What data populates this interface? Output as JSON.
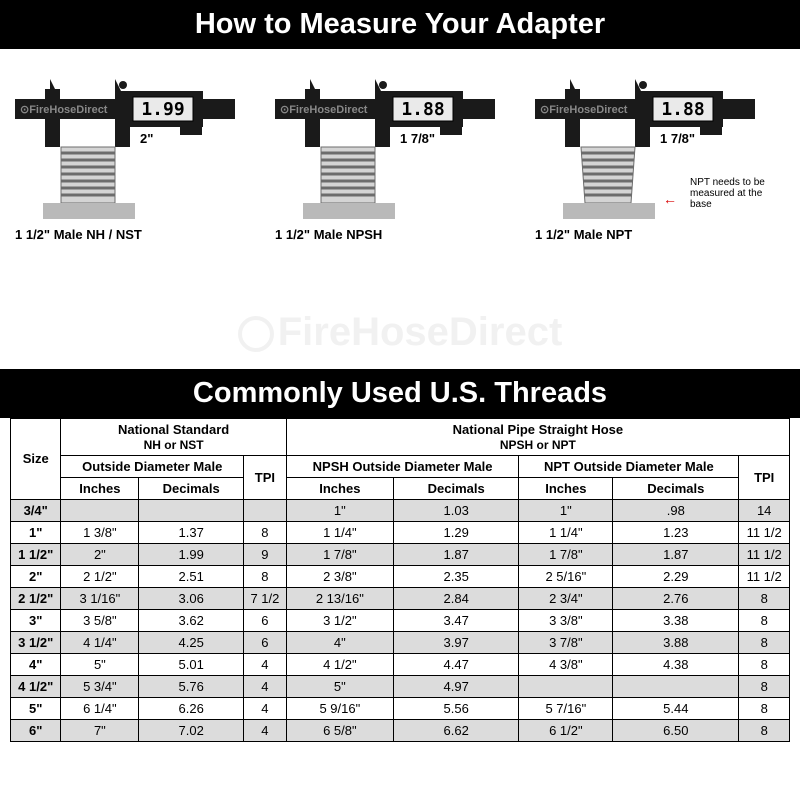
{
  "title1": "How to Measure Your Adapter",
  "title2": "Commonly Used U.S. Threads",
  "watermark": "FireHoseDirect",
  "diagrams": [
    {
      "caption": "1 1/2\" Male NH / NST",
      "reading": "1.99",
      "dim": "2\"",
      "note": "",
      "tapered": false
    },
    {
      "caption": "1 1/2\" Male NPSH",
      "reading": "1.88",
      "dim": "1 7/8\"",
      "note": "",
      "tapered": false
    },
    {
      "caption": "1 1/2\" Male NPT",
      "reading": "1.88",
      "dim": "1 7/8\"",
      "note": "NPT needs to be measured at the base",
      "tapered": true
    }
  ],
  "table": {
    "groupHeaders": {
      "size": "Size",
      "nh": {
        "line1": "National Standard",
        "line2": "NH or NST"
      },
      "np": {
        "line1": "National Pipe Straight Hose",
        "line2": "NPSH or NPT"
      }
    },
    "subHeaders": {
      "odMale": "Outside Diameter Male",
      "tpi": "TPI",
      "npshOd": "NPSH Outside Diameter Male",
      "nptOd": "NPT Outside Diameter Male",
      "inches": "Inches",
      "decimals": "Decimals"
    },
    "rows": [
      {
        "size": "3/4\"",
        "nh_in": "",
        "nh_dec": "",
        "nh_tpi": "",
        "npsh_in": "1\"",
        "npsh_dec": "1.03",
        "npt_in": "1\"",
        "npt_dec": ".98",
        "np_tpi": "14",
        "shade": true
      },
      {
        "size": "1\"",
        "nh_in": "1 3/8\"",
        "nh_dec": "1.37",
        "nh_tpi": "8",
        "npsh_in": "1 1/4\"",
        "npsh_dec": "1.29",
        "npt_in": "1 1/4\"",
        "npt_dec": "1.23",
        "np_tpi": "11 1/2",
        "shade": false
      },
      {
        "size": "1 1/2\"",
        "nh_in": "2\"",
        "nh_dec": "1.99",
        "nh_tpi": "9",
        "npsh_in": "1 7/8\"",
        "npsh_dec": "1.87",
        "npt_in": "1 7/8\"",
        "npt_dec": "1.87",
        "np_tpi": "11 1/2",
        "shade": true
      },
      {
        "size": "2\"",
        "nh_in": "2 1/2\"",
        "nh_dec": "2.51",
        "nh_tpi": "8",
        "npsh_in": "2 3/8\"",
        "npsh_dec": "2.35",
        "npt_in": "2 5/16\"",
        "npt_dec": "2.29",
        "np_tpi": "11 1/2",
        "shade": false
      },
      {
        "size": "2 1/2\"",
        "nh_in": "3 1/16\"",
        "nh_dec": "3.06",
        "nh_tpi": "7 1/2",
        "npsh_in": "2 13/16\"",
        "npsh_dec": "2.84",
        "npt_in": "2 3/4\"",
        "npt_dec": "2.76",
        "np_tpi": "8",
        "shade": true
      },
      {
        "size": "3\"",
        "nh_in": "3 5/8\"",
        "nh_dec": "3.62",
        "nh_tpi": "6",
        "npsh_in": "3 1/2\"",
        "npsh_dec": "3.47",
        "npt_in": "3 3/8\"",
        "npt_dec": "3.38",
        "np_tpi": "8",
        "shade": false
      },
      {
        "size": "3 1/2\"",
        "nh_in": "4 1/4\"",
        "nh_dec": "4.25",
        "nh_tpi": "6",
        "npsh_in": "4\"",
        "npsh_dec": "3.97",
        "npt_in": "3 7/8\"",
        "npt_dec": "3.88",
        "np_tpi": "8",
        "shade": true
      },
      {
        "size": "4\"",
        "nh_in": "5\"",
        "nh_dec": "5.01",
        "nh_tpi": "4",
        "npsh_in": "4 1/2\"",
        "npsh_dec": "4.47",
        "npt_in": "4 3/8\"",
        "npt_dec": "4.38",
        "np_tpi": "8",
        "shade": false
      },
      {
        "size": "4 1/2\"",
        "nh_in": "5 3/4\"",
        "nh_dec": "5.76",
        "nh_tpi": "4",
        "npsh_in": "5\"",
        "npsh_dec": "4.97",
        "npt_in": "",
        "npt_dec": "",
        "np_tpi": "8",
        "shade": true
      },
      {
        "size": "5\"",
        "nh_in": "6 1/4\"",
        "nh_dec": "6.26",
        "nh_tpi": "4",
        "npsh_in": "5 9/16\"",
        "npsh_dec": "5.56",
        "npt_in": "5 7/16\"",
        "npt_dec": "5.44",
        "np_tpi": "8",
        "shade": false
      },
      {
        "size": "6\"",
        "nh_in": "7\"",
        "nh_dec": "7.02",
        "nh_tpi": "4",
        "npsh_in": "6 5/8\"",
        "npsh_dec": "6.62",
        "npt_in": "6 1/2\"",
        "npt_dec": "6.50",
        "np_tpi": "8",
        "shade": true
      }
    ]
  },
  "colors": {
    "black": "#000000",
    "white": "#ffffff",
    "shade": "#dcdcdc",
    "steel": "#b9b9b9",
    "red": "#d80000"
  }
}
